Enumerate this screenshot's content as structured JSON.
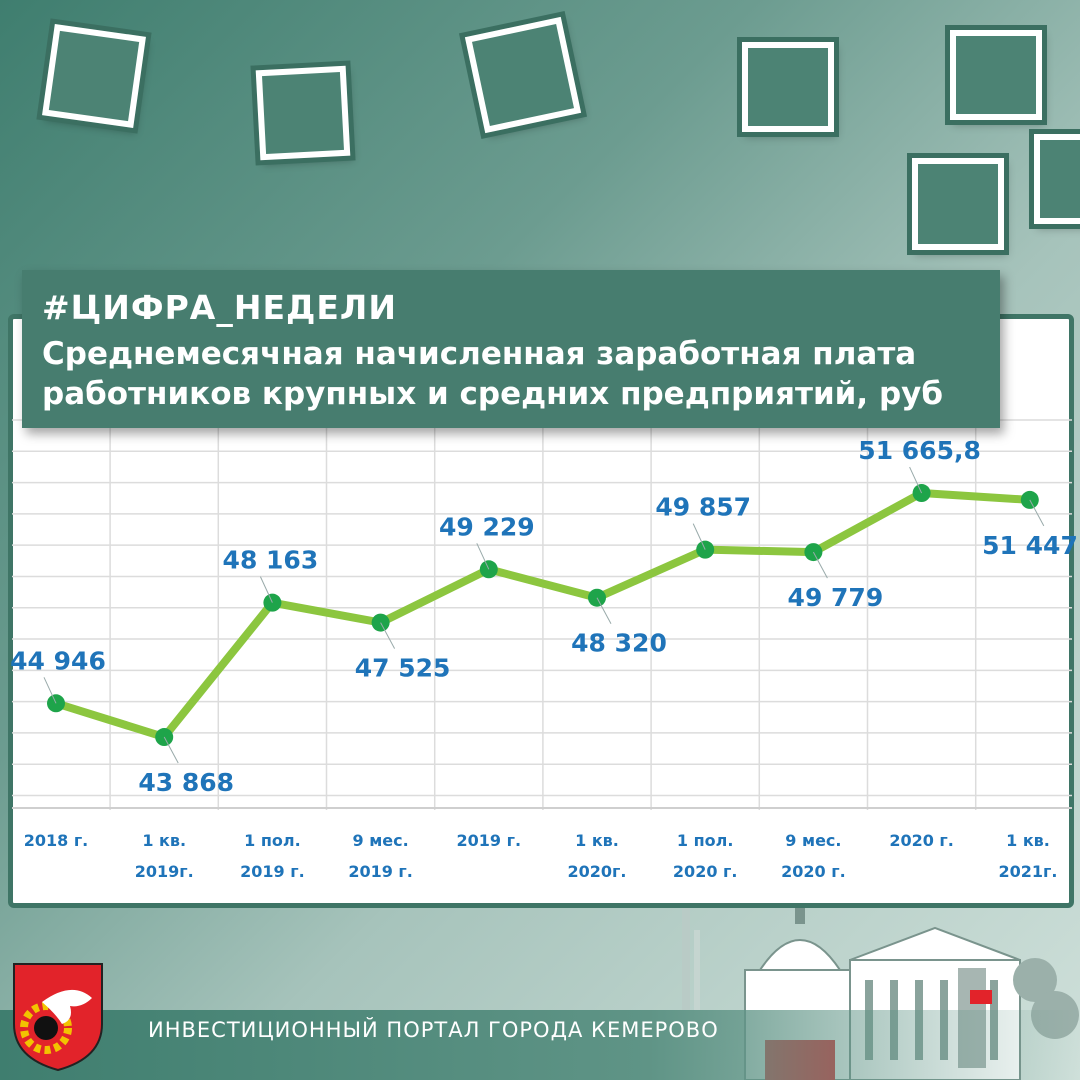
{
  "header": {
    "hashtag": "#ЦИФРА_НЕДЕЛИ",
    "title_line1": "Среднемесячная начисленная заработная плата",
    "title_line2": "работников крупных и средних предприятий, руб"
  },
  "footer": {
    "portal_name": "ИНВЕСТИЦИОННЫЙ ПОРТАЛ ГОРОДА КЕМЕРОВО"
  },
  "colors": {
    "line": "#8cc63f",
    "marker": "#1ea44a",
    "label": "#1f74b9",
    "axis_text": "#1f74b9",
    "grid": "#dcdcdc"
  },
  "chart_data": {
    "type": "line",
    "categories": [
      [
        "2018 г.",
        ""
      ],
      [
        "1 кв.",
        "2019г."
      ],
      [
        "1 пол.",
        "2019 г."
      ],
      [
        "9 мес.",
        "2019 г."
      ],
      [
        "2019 г.",
        ""
      ],
      [
        "1 кв.",
        "2020г."
      ],
      [
        "1 пол.",
        "2020 г."
      ],
      [
        "9 мес.",
        "2020 г."
      ],
      [
        "2020 г.",
        ""
      ],
      [
        "1 кв.",
        "2021г."
      ]
    ],
    "values": [
      44946,
      43868,
      48163,
      47525,
      49229,
      48320,
      49857,
      49779,
      51665.8,
      51447
    ],
    "data_labels": [
      "44 946",
      "43 868",
      "48 163",
      "47 525",
      "49 229",
      "48 320",
      "49 857",
      "49 779",
      "51 665,8",
      "51 447"
    ],
    "label_positions": [
      "above",
      "below",
      "above",
      "below",
      "above",
      "below",
      "above",
      "below",
      "above",
      "below"
    ],
    "ylim": [
      41600,
      54000
    ],
    "grid": true,
    "legend": "none"
  }
}
